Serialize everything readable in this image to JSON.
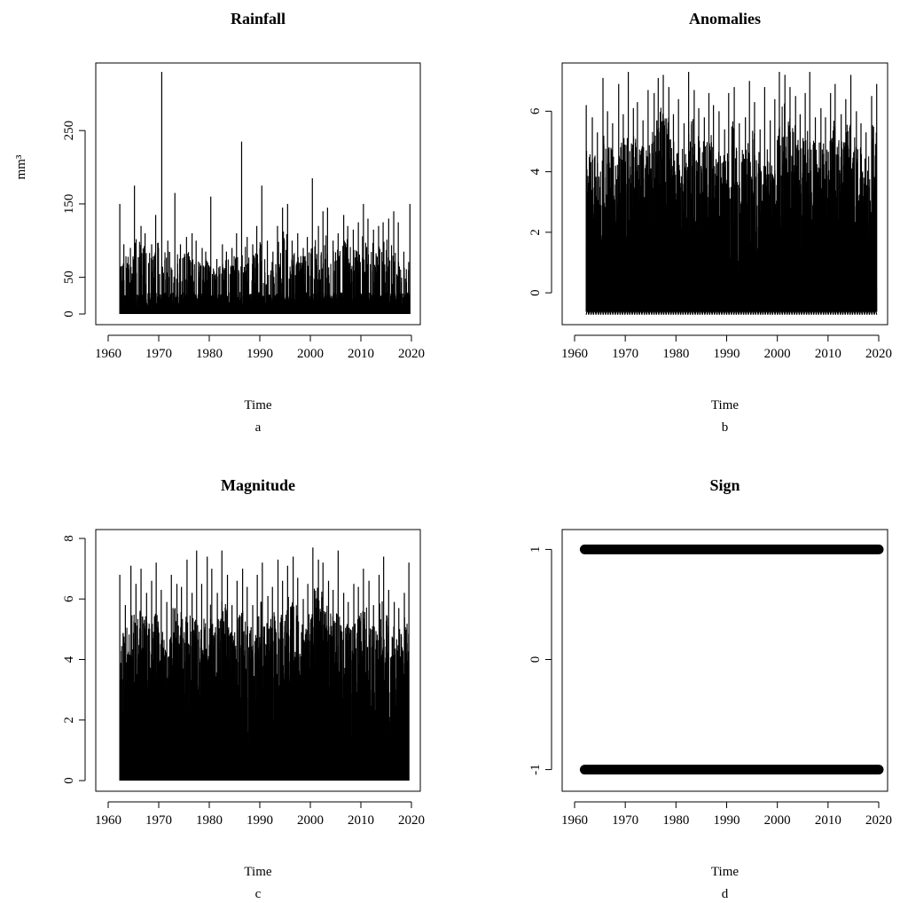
{
  "chart_data": [
    {
      "type": "line",
      "title": "Rainfall",
      "xlabel": "Time",
      "ylabel": "mm³",
      "sublabel": "a",
      "xlim": [
        1960,
        2020
      ],
      "ylim": [
        0,
        330
      ],
      "xticks": [
        1960,
        1970,
        1980,
        1990,
        2000,
        2010,
        2020
      ],
      "yticks": [
        0,
        50,
        150,
        250
      ],
      "color": "#000000",
      "series": [
        {
          "x": [
            1962.3,
            1963.1,
            1964.4,
            1965.2,
            1966.5,
            1967.3,
            1968.6,
            1969.4,
            1970.6,
            1971.8,
            1973.2,
            1974.3,
            1975.5,
            1976.6,
            1977.4,
            1978.6,
            1979.3,
            1980.3,
            1981.5,
            1982.6,
            1983.4,
            1984.5,
            1985.4,
            1986.4,
            1987.5,
            1988.6,
            1989.4,
            1990.4,
            1991.5,
            1992.6,
            1993.5,
            1994.5,
            1995.5,
            1996.4,
            1997.5,
            1998.6,
            1999.4,
            2000.4,
            2001.6,
            2002.5,
            2003.4,
            2004.5,
            2005.5,
            2006.6,
            2007.4,
            2008.5,
            2009.5,
            2010.5,
            2011.4,
            2012.5,
            2013.5,
            2014.4,
            2015.5,
            2016.5,
            2017.4,
            2018.5,
            2019.7
          ],
          "y": [
            150,
            95,
            90,
            175,
            120,
            110,
            95,
            135,
            330,
            100,
            165,
            95,
            105,
            110,
            100,
            90,
            85,
            160,
            75,
            95,
            85,
            90,
            110,
            235,
            105,
            95,
            120,
            175,
            100,
            85,
            120,
            145,
            150,
            100,
            110,
            90,
            105,
            185,
            120,
            140,
            145,
            100,
            110,
            135,
            120,
            115,
            125,
            150,
            130,
            115,
            120,
            125,
            130,
            140,
            125,
            85,
            150
          ]
        }
      ]
    },
    {
      "type": "line",
      "title": "Anomalies",
      "xlabel": "Time",
      "ylabel": "",
      "sublabel": "b",
      "xlim": [
        1960,
        2020
      ],
      "ylim": [
        -0.7,
        7.3
      ],
      "xticks": [
        1960,
        1970,
        1980,
        1990,
        2000,
        2010,
        2020
      ],
      "yticks": [
        0,
        2,
        4,
        6
      ],
      "color": "#000000",
      "series": [
        {
          "x": [
            1962.3,
            1963.5,
            1964.5,
            1965.6,
            1966.5,
            1967.5,
            1968.7,
            1969.6,
            1970.6,
            1971.6,
            1972.4,
            1973.5,
            1974.5,
            1975.7,
            1976.5,
            1977.5,
            1978.6,
            1979.5,
            1980.5,
            1981.6,
            1982.5,
            1983.6,
            1984.5,
            1985.6,
            1986.5,
            1987.4,
            1988.5,
            1989.6,
            1990.4,
            1991.5,
            1992.5,
            1993.7,
            1994.5,
            1995.5,
            1996.6,
            1997.5,
            1998.6,
            1999.5,
            2000.4,
            2001.5,
            2002.5,
            2003.6,
            2004.5,
            2005.5,
            2006.4,
            2007.5,
            2008.6,
            2009.5,
            2010.5,
            2011.4,
            2012.6,
            2013.5,
            2014.5,
            2015.6,
            2016.5,
            2017.5,
            2018.6,
            2019.6
          ],
          "y": [
            6.2,
            5.8,
            5.3,
            7.1,
            6.0,
            5.6,
            6.9,
            5.9,
            7.3,
            6.1,
            6.3,
            5.7,
            6.7,
            6.6,
            7.1,
            7.2,
            6.8,
            5.9,
            6.4,
            5.6,
            7.3,
            6.7,
            6.1,
            5.8,
            6.6,
            6.2,
            6.0,
            5.4,
            6.6,
            6.8,
            5.6,
            5.8,
            7.0,
            6.3,
            5.4,
            6.8,
            5.7,
            6.4,
            7.3,
            7.2,
            6.8,
            6.5,
            5.9,
            6.6,
            7.3,
            5.8,
            6.1,
            5.8,
            6.6,
            6.9,
            5.9,
            6.4,
            7.2,
            6.0,
            5.6,
            5.3,
            6.5,
            6.9
          ]
        }
      ]
    },
    {
      "type": "line",
      "title": "Magnitude",
      "xlabel": "Time",
      "ylabel": "",
      "sublabel": "c",
      "xlim": [
        1960,
        2020
      ],
      "ylim": [
        0,
        8
      ],
      "xticks": [
        1960,
        1970,
        1980,
        1990,
        2000,
        2010,
        2020
      ],
      "yticks": [
        0,
        2,
        4,
        6,
        8
      ],
      "color": "#000000",
      "series": [
        {
          "x": [
            1962.3,
            1963.4,
            1964.5,
            1965.5,
            1966.5,
            1967.6,
            1968.6,
            1969.5,
            1970.5,
            1971.6,
            1972.5,
            1973.6,
            1974.5,
            1975.6,
            1976.6,
            1977.5,
            1978.5,
            1979.6,
            1980.5,
            1981.6,
            1982.5,
            1983.6,
            1984.5,
            1985.5,
            1986.6,
            1987.5,
            1988.6,
            1989.5,
            1990.5,
            1991.6,
            1992.5,
            1993.6,
            1994.5,
            1995.5,
            1996.6,
            1997.5,
            1998.6,
            1999.5,
            2000.5,
            2001.6,
            2002.5,
            2003.6,
            2004.5,
            2005.5,
            2006.6,
            2007.5,
            2008.6,
            2009.5,
            2010.5,
            2011.6,
            2012.5,
            2013.6,
            2014.5,
            2015.5,
            2016.6,
            2017.5,
            2018.6,
            2019.5
          ],
          "y": [
            6.8,
            5.8,
            7.1,
            6.5,
            7.0,
            6.2,
            6.6,
            7.2,
            6.3,
            5.9,
            6.8,
            6.5,
            6.4,
            7.3,
            6.2,
            7.6,
            6.5,
            7.4,
            7.0,
            6.2,
            7.6,
            6.8,
            5.8,
            6.6,
            7.0,
            6.4,
            5.8,
            6.8,
            7.2,
            6.1,
            6.4,
            7.3,
            6.6,
            7.1,
            7.4,
            6.7,
            6.0,
            6.5,
            7.7,
            7.3,
            7.2,
            6.6,
            6.3,
            7.6,
            6.2,
            5.9,
            6.5,
            6.4,
            7.0,
            6.6,
            5.8,
            6.8,
            7.4,
            6.3,
            5.9,
            5.7,
            6.2,
            7.2
          ]
        }
      ]
    },
    {
      "type": "scatter",
      "title": "Sign",
      "xlabel": "Time",
      "ylabel": "",
      "sublabel": "d",
      "xlim": [
        1960,
        2020
      ],
      "ylim": [
        -1.1,
        1.1
      ],
      "xticks": [
        1960,
        1970,
        1980,
        1990,
        2000,
        2010,
        2020
      ],
      "yticks": [
        -1,
        0,
        1
      ],
      "ytick_labels": [
        "-1",
        "0",
        "1"
      ],
      "color": "#000000",
      "series": [
        {
          "x_range": [
            1962,
            2020
          ],
          "y": [
            1,
            -1
          ]
        }
      ]
    }
  ]
}
